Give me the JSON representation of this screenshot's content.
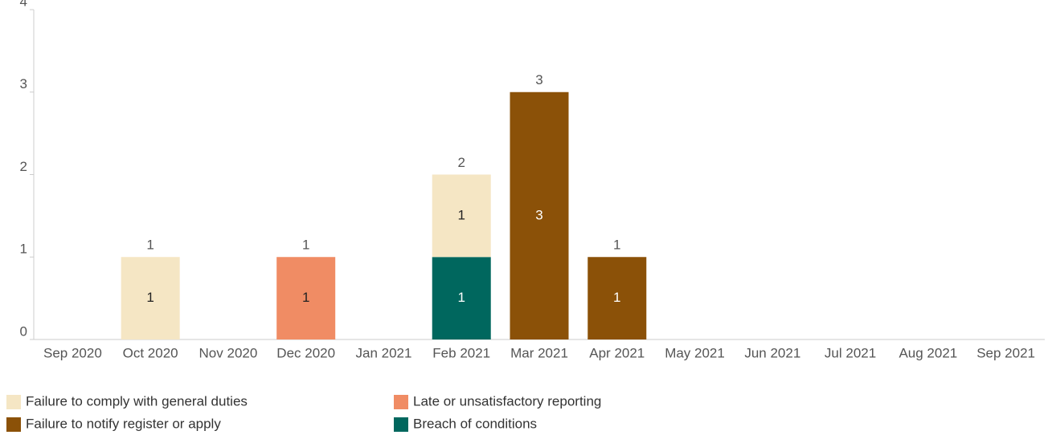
{
  "chart_data": {
    "type": "stacked_bar",
    "categories": [
      "Sep 2020",
      "Oct 2020",
      "Nov 2020",
      "Dec 2020",
      "Jan 2021",
      "Feb 2021",
      "Mar 2021",
      "Apr 2021",
      "May 2021",
      "Jun 2021",
      "Jul 2021",
      "Aug 2021",
      "Sep 2021"
    ],
    "series": [
      {
        "name": "Failure to comply with general duties",
        "color": "#f5e6c4",
        "values": [
          null,
          1,
          null,
          null,
          null,
          1,
          null,
          null,
          null,
          null,
          null,
          null,
          null
        ]
      },
      {
        "name": "Late or unsatisfactory reporting",
        "color": "#f08c64",
        "values": [
          null,
          null,
          null,
          1,
          null,
          null,
          null,
          null,
          null,
          null,
          null,
          null,
          null
        ]
      },
      {
        "name": "Failure to notify register or apply",
        "color": "#8b5108",
        "values": [
          null,
          null,
          null,
          null,
          null,
          null,
          3,
          1,
          null,
          null,
          null,
          null,
          null
        ]
      },
      {
        "name": "Breach of conditions",
        "color": "#00675e",
        "values": [
          null,
          null,
          null,
          null,
          null,
          1,
          null,
          null,
          null,
          null,
          null,
          null,
          null
        ]
      }
    ],
    "totals": [
      null,
      1,
      null,
      1,
      null,
      2,
      3,
      1,
      null,
      null,
      null,
      null,
      null
    ],
    "ylim": [
      0,
      4
    ],
    "yticks": [
      0,
      1,
      2,
      3,
      4
    ],
    "grid": false
  }
}
